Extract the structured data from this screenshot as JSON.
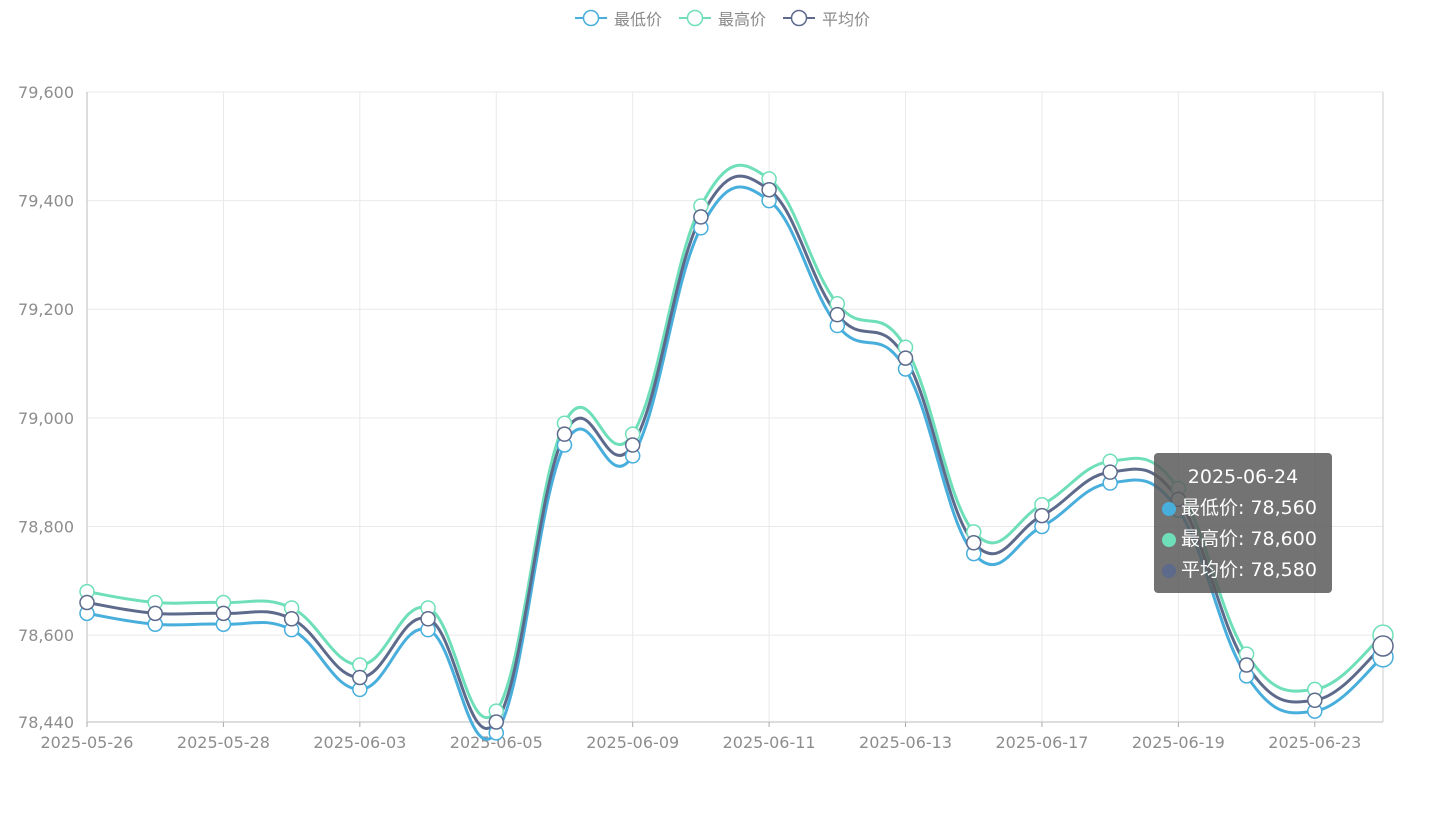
{
  "chart_data": {
    "type": "line",
    "smooth": true,
    "x": [
      "2025-05-26",
      "2025-05-27",
      "2025-05-28",
      "2025-05-29",
      "2025-06-03",
      "2025-06-04",
      "2025-06-05",
      "2025-06-06",
      "2025-06-09",
      "2025-06-10",
      "2025-06-11",
      "2025-06-12",
      "2025-06-13",
      "2025-06-16",
      "2025-06-17",
      "2025-06-18",
      "2025-06-19",
      "2025-06-20",
      "2025-06-23",
      "2025-06-24"
    ],
    "x_tick_labels": [
      "2025-05-26",
      "2025-05-28",
      "2025-06-03",
      "2025-06-05",
      "2025-06-09",
      "2025-06-11",
      "2025-06-13",
      "2025-06-17",
      "2025-06-19",
      "2025-06-23"
    ],
    "ylim": [
      78440,
      79600
    ],
    "y_ticks": [
      78440,
      78600,
      78800,
      79000,
      79200,
      79400,
      79600
    ],
    "y_tick_labels": [
      "78,440",
      "78,600",
      "78,800",
      "79,000",
      "79,200",
      "79,400",
      "79,600"
    ],
    "grid": true,
    "legend_position": "top-center",
    "series": [
      {
        "name": "最低价",
        "color": "#48aedc",
        "values": [
          78640,
          78620,
          78620,
          78610,
          78500,
          78610,
          78420,
          78950,
          78930,
          79350,
          79400,
          79170,
          79090,
          78750,
          78800,
          78880,
          78830,
          78525,
          78460,
          78560
        ]
      },
      {
        "name": "最高价",
        "color": "#6fdfba",
        "values": [
          78680,
          78660,
          78660,
          78650,
          78545,
          78650,
          78460,
          78990,
          78970,
          79390,
          79440,
          79210,
          79130,
          78790,
          78840,
          78920,
          78870,
          78565,
          78500,
          78600
        ]
      },
      {
        "name": "平均价",
        "color": "#5d6a8c",
        "values": [
          78660,
          78640,
          78640,
          78630,
          78522,
          78630,
          78440,
          78970,
          78950,
          79370,
          79420,
          79190,
          79110,
          78770,
          78820,
          78900,
          78850,
          78545,
          78480,
          78580
        ]
      }
    ]
  },
  "tooltip": {
    "title": "2025-06-24",
    "rows": [
      {
        "label": "最低价: 78,560",
        "color": "#48aedc"
      },
      {
        "label": "最高价: 78,600",
        "color": "#6fdfba"
      },
      {
        "label": "平均价: 78,580",
        "color": "#5d6a8c"
      }
    ]
  }
}
